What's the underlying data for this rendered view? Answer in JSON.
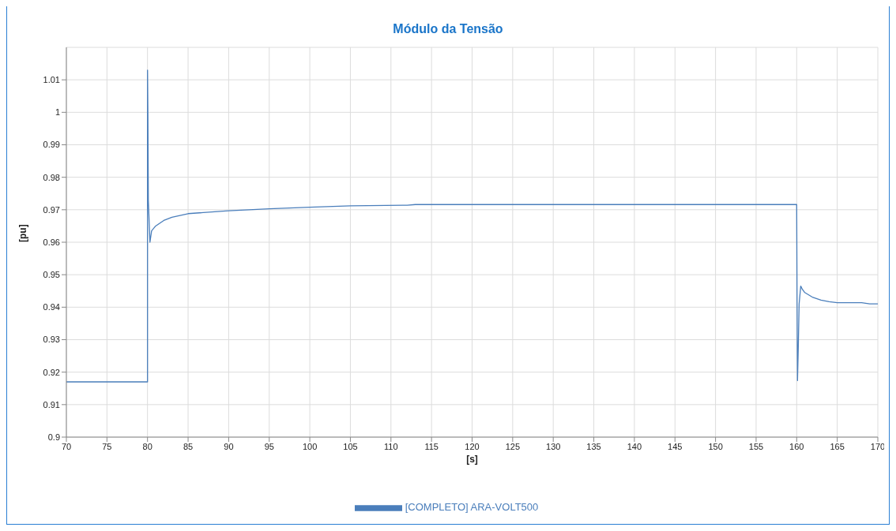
{
  "chart_data": {
    "type": "line",
    "title": "Módulo da Tensão",
    "xlabel": "[s]",
    "ylabel": "[pu]",
    "x": [
      70,
      80,
      80,
      80.05,
      80.1,
      80.3,
      80.5,
      81,
      82,
      83,
      85,
      90,
      95,
      100,
      105,
      112,
      113,
      160,
      160.05,
      160.1,
      160.2,
      160.3,
      160.5,
      160.7,
      161,
      162,
      163,
      164,
      165,
      168,
      169,
      170
    ],
    "series": [
      {
        "name": "[COMPLETO] ARA-VOLT500",
        "color": "#4a7ebb",
        "values": [
          0.917,
          0.917,
          1.013,
          0.999,
          0.973,
          0.96,
          0.9635,
          0.965,
          0.9667,
          0.9677,
          0.9688,
          0.9697,
          0.9703,
          0.9708,
          0.9712,
          0.9714,
          0.9716,
          0.9716,
          0.94,
          0.9174,
          0.928,
          0.941,
          0.9465,
          0.9455,
          0.9445,
          0.943,
          0.9422,
          0.9417,
          0.9414,
          0.9414,
          0.941,
          0.941
        ]
      }
    ],
    "xlim": [
      70,
      170
    ],
    "xticks": [
      70,
      75,
      80,
      85,
      90,
      95,
      100,
      105,
      110,
      115,
      120,
      125,
      130,
      135,
      140,
      145,
      150,
      155,
      160,
      165,
      170
    ],
    "ylim": [
      0.9,
      1.02
    ],
    "yticks": [
      0.9,
      0.91,
      0.92,
      0.93,
      0.94,
      0.95,
      0.96,
      0.97,
      0.98,
      0.99,
      1,
      1.01
    ],
    "grid": true,
    "legend": "bottom",
    "marker": "none",
    "line_style": "solid"
  }
}
